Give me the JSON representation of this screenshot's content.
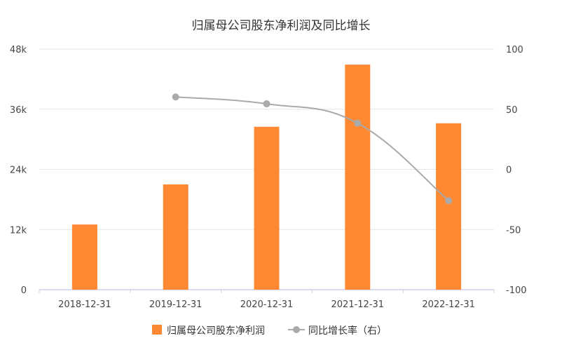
{
  "chart_data": {
    "type": "bar",
    "title": "归属母公司股东净利润及同比增长",
    "categories": [
      "2018-12-31",
      "2019-12-31",
      "2020-12-31",
      "2021-12-31",
      "2022-12-31"
    ],
    "series": [
      {
        "name": "归属母公司股东净利润",
        "type": "bar",
        "axis": "left",
        "color": "#ff8833",
        "values": [
          13000,
          21000,
          32500,
          44900,
          33200
        ]
      },
      {
        "name": "同比增长率（右）",
        "type": "line",
        "axis": "right",
        "color": "#aaaaaa",
        "values": [
          null,
          60.2,
          54.5,
          38.4,
          -26.0
        ]
      }
    ],
    "left_axis": {
      "min": 0,
      "max": 48000,
      "ticks": [
        0,
        12000,
        24000,
        36000,
        48000
      ],
      "tick_labels": [
        "0",
        "12k",
        "24k",
        "36k",
        "48k"
      ]
    },
    "right_axis": {
      "min": -100,
      "max": 100,
      "ticks": [
        -100,
        -50,
        0,
        50,
        100
      ],
      "tick_labels": [
        "-100",
        "-50",
        "0",
        "50",
        "100"
      ]
    },
    "grid": true,
    "legend_placement": "bottom"
  }
}
